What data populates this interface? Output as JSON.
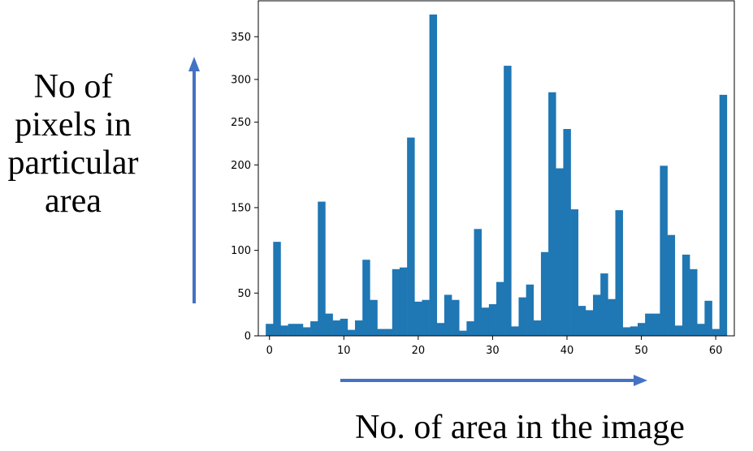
{
  "chart_data": {
    "type": "bar",
    "ylabel_lines": [
      "No of",
      "pixels in",
      "particular",
      "area"
    ],
    "xlabel": "No. of area in the image",
    "xlim": [
      -1.5,
      62.5
    ],
    "ylim": [
      0,
      392
    ],
    "xticks": [
      "0",
      "10",
      "20",
      "30",
      "40",
      "50",
      "60"
    ],
    "xtick_values": [
      0,
      10,
      20,
      30,
      40,
      50,
      60
    ],
    "yticks": [
      "0",
      "50",
      "100",
      "150",
      "200",
      "250",
      "300",
      "350"
    ],
    "ytick_values": [
      0,
      50,
      100,
      150,
      200,
      250,
      300,
      350
    ],
    "bar_color": "#1f77b4",
    "arrow_color": "#4472c4",
    "categories": [
      0,
      1,
      2,
      3,
      4,
      5,
      6,
      7,
      8,
      9,
      10,
      11,
      12,
      13,
      14,
      15,
      16,
      17,
      18,
      19,
      20,
      21,
      22,
      23,
      24,
      25,
      26,
      27,
      28,
      29,
      30,
      31,
      32,
      33,
      34,
      35,
      36,
      37,
      38,
      39,
      40,
      41,
      42,
      43,
      44,
      45,
      46,
      47,
      48,
      49,
      50,
      51,
      52,
      53,
      54,
      55,
      56,
      57,
      58,
      59,
      60,
      61
    ],
    "values": [
      14,
      110,
      12,
      14,
      14,
      10,
      17,
      157,
      26,
      18,
      20,
      7,
      18,
      89,
      42,
      8,
      8,
      78,
      80,
      232,
      40,
      42,
      376,
      15,
      48,
      42,
      6,
      17,
      125,
      33,
      37,
      63,
      316,
      11,
      45,
      60,
      18,
      98,
      285,
      196,
      242,
      148,
      35,
      30,
      48,
      73,
      43,
      147,
      10,
      11,
      15,
      26,
      26,
      199,
      118,
      12,
      95,
      78,
      14,
      41,
      8,
      282
    ]
  }
}
